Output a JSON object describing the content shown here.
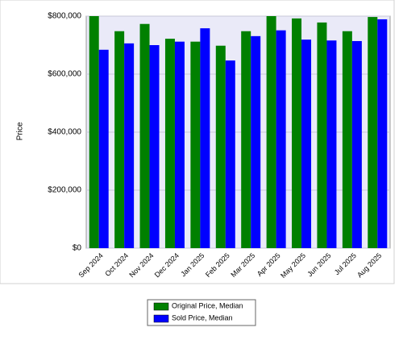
{
  "chart_data": {
    "type": "bar",
    "y_label": "Price",
    "categories": [
      "Sep 2024",
      "Oct 2024",
      "Nov 2024",
      "Dec 2024",
      "Jan 2025",
      "Feb 2025",
      "Mar 2025",
      "Apr 2025",
      "May 2025",
      "Jun 2025",
      "Jul 2025",
      "Aug 2025"
    ],
    "series": [
      {
        "name": "Original Price, Median",
        "color": "#008000",
        "values": [
          800000,
          748000,
          773000,
          722000,
          712000,
          698000,
          748000,
          800000,
          792000,
          778000,
          748000,
          797000
        ]
      },
      {
        "name": "Sold Price, Median",
        "color": "#0000ff",
        "values": [
          684000,
          706000,
          700000,
          712000,
          758000,
          647000,
          731000,
          751000,
          719000,
          716000,
          714000,
          789000
        ]
      }
    ],
    "ylim": [
      0,
      800000
    ],
    "yticks": [
      {
        "value": 0,
        "label": "$0"
      },
      {
        "value": 200000,
        "label": "$200,000"
      },
      {
        "value": 400000,
        "label": "$400,000"
      },
      {
        "value": 600000,
        "label": "$600,000"
      },
      {
        "value": 800000,
        "label": "$800,000"
      }
    ],
    "grid": true
  }
}
